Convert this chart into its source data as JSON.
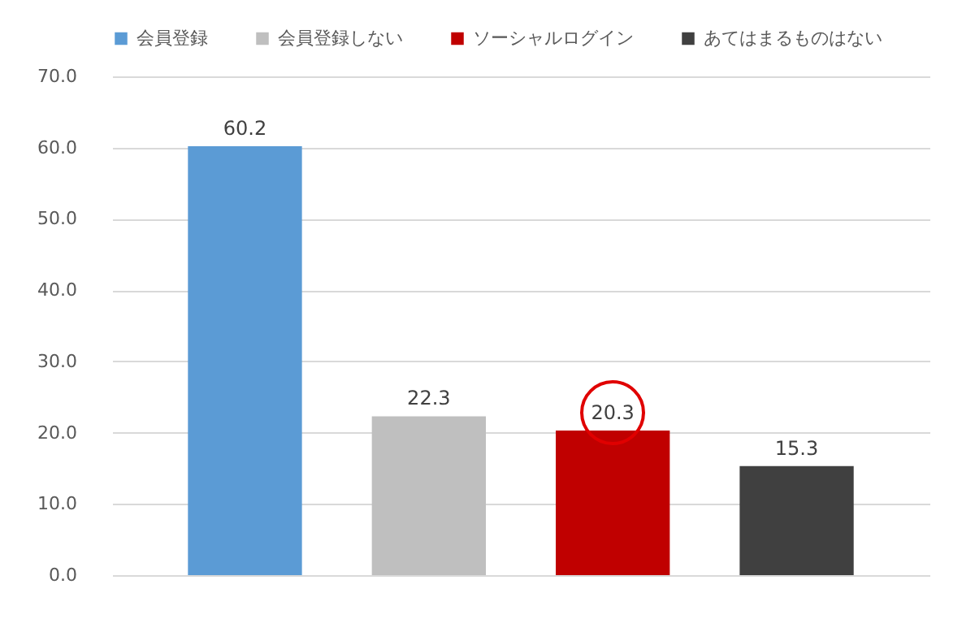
{
  "chart_data": {
    "type": "bar",
    "categories": [
      null
    ],
    "series": [
      {
        "name": "会員登録",
        "color": "#5b9bd5",
        "values": [
          60.2
        ]
      },
      {
        "name": "会員登録しない",
        "color": "#bfbfbf",
        "values": [
          22.3
        ]
      },
      {
        "name": "ソーシャルログイン",
        "color": "#c00000",
        "values": [
          20.3
        ]
      },
      {
        "name": "あてはまるものはない",
        "color": "#404040",
        "values": [
          15.3
        ]
      }
    ],
    "ylim": [
      0,
      70
    ],
    "yticks": [
      {
        "value": 0,
        "label": "0.0"
      },
      {
        "value": 10,
        "label": "10.0"
      },
      {
        "value": 20,
        "label": "20.0"
      },
      {
        "value": 30,
        "label": "30.0"
      },
      {
        "value": 40,
        "label": "40.0"
      },
      {
        "value": 50,
        "label": "50.0"
      },
      {
        "value": 60,
        "label": "60.0"
      },
      {
        "value": 70,
        "label": "70.0"
      }
    ],
    "grid": "y",
    "legend": "top",
    "data_labels": true,
    "tick_labels": "y"
  }
}
